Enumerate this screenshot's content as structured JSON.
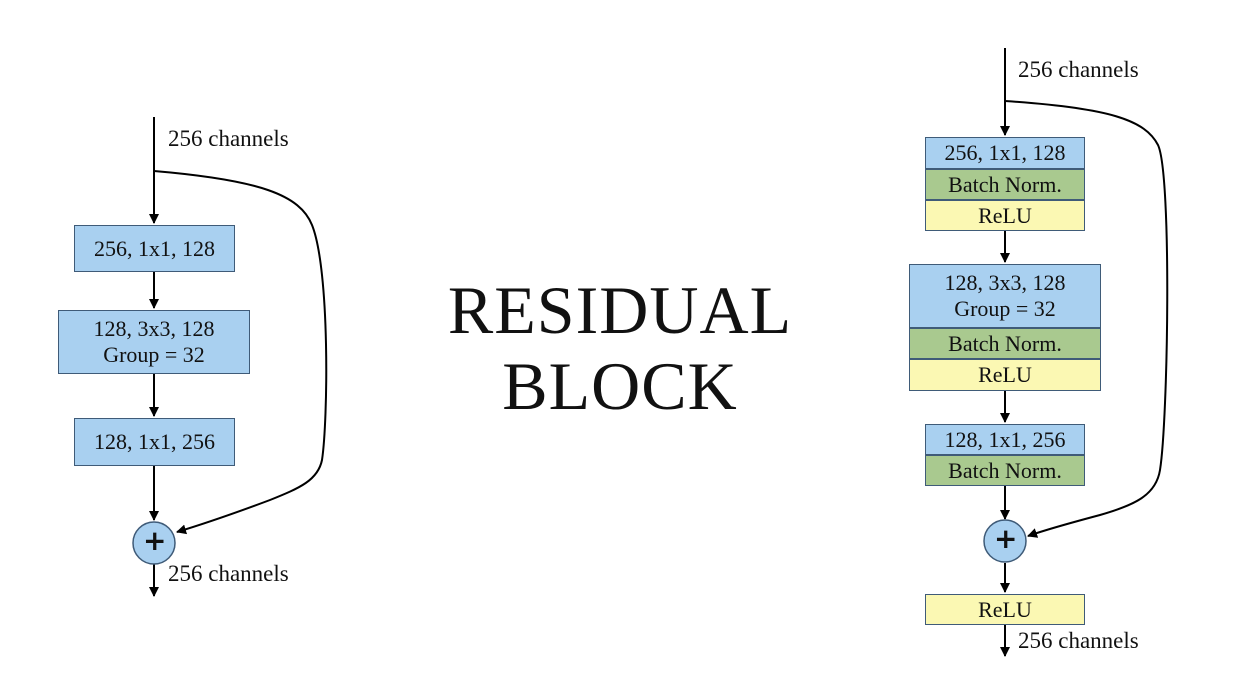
{
  "title": {
    "line1": "RESIDUAL",
    "line2": "BLOCK"
  },
  "left_block": {
    "input_label": "256 channels",
    "conv1": "256, 1x1, 128",
    "conv2_line1": "128, 3x3, 128",
    "conv2_line2": "Group = 32",
    "conv3": "128, 1x1, 256",
    "add_symbol": "+",
    "output_label": "256 channels"
  },
  "right_block": {
    "input_label": "256 channels",
    "conv1": "256, 1x1, 128",
    "bn1": "Batch Norm.",
    "relu1": "ReLU",
    "conv2_line1": "128, 3x3, 128",
    "conv2_line2": "Group = 32",
    "bn2": "Batch Norm.",
    "relu2": "ReLU",
    "conv3": "128, 1x1, 256",
    "bn3": "Batch Norm.",
    "add_symbol": "+",
    "relu_out": "ReLU",
    "output_label": "256 channels"
  },
  "colors": {
    "conv": "#a9d0f0",
    "batch_norm": "#a9c98f",
    "relu": "#fbf8b3",
    "add_node": "#a9d0f0",
    "stroke": "#000000"
  }
}
